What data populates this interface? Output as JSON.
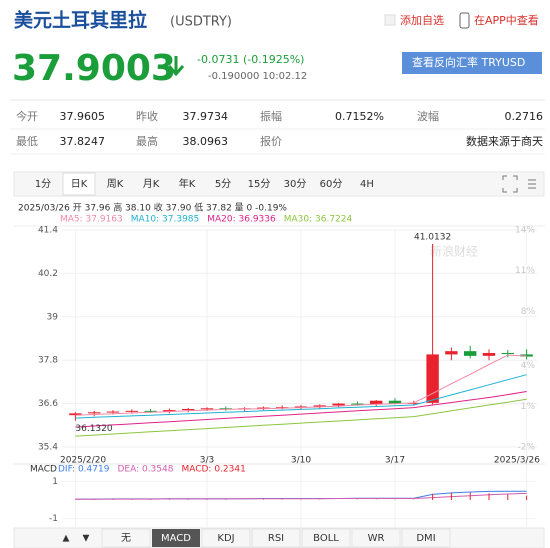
{
  "header": {
    "title": "美元土耳其里拉",
    "code": "(USDTRY)",
    "add_watch": "添加自选",
    "app_view": "在APP中查看"
  },
  "quote": {
    "price": "37.9003",
    "change": "-0.0731 (-0.1925%)",
    "sub": "-0.190000 10:02.12",
    "reverse_button": "查看反向汇率 TRYUSD"
  },
  "stats": {
    "rows": [
      [
        {
          "label": "今开",
          "value": "37.9605"
        },
        {
          "label": "昨收",
          "value": "37.9734"
        },
        {
          "label": "振幅",
          "value": "0.7152%"
        },
        {
          "label": "波幅",
          "value": "0.2716"
        }
      ],
      [
        {
          "label": "最低",
          "value": "37.8247"
        },
        {
          "label": "最高",
          "value": "38.0963"
        },
        {
          "label": "报价"
        },
        {
          "value": "数据来源于商天"
        }
      ]
    ]
  },
  "period_tabs": [
    "1分",
    "日K",
    "周K",
    "月K",
    "年K",
    "5分",
    "15分",
    "30分",
    "60分",
    "4H"
  ],
  "period_active": 1,
  "info_line": "2025/03/26 开 37.96 高 38.10 收 37.90 低 37.82 量 0 -0.19%",
  "watermark": "新浪财经",
  "indicator_tabs": [
    "无",
    "MACD",
    "KDJ",
    "RSI",
    "BOLL",
    "WR",
    "DMI"
  ],
  "indicator_active": 1,
  "chart_data": [
    {
      "type": "candlestick",
      "categories": [
        "2025/2/20",
        null,
        null,
        null,
        null,
        null,
        null,
        "3/3",
        null,
        null,
        null,
        null,
        "3/10",
        null,
        null,
        null,
        null,
        "3/17",
        null,
        null,
        null,
        null,
        null,
        null,
        "2025/3/26"
      ],
      "open": [
        36.28,
        36.33,
        36.36,
        36.38,
        36.4,
        36.38,
        36.42,
        36.45,
        36.47,
        36.44,
        36.47,
        36.49,
        36.5,
        36.52,
        36.55,
        36.6,
        36.58,
        36.68,
        36.6,
        36.62,
        37.96,
        38.05,
        37.92,
        38.0,
        37.96
      ],
      "high": [
        36.36,
        36.4,
        36.42,
        36.44,
        36.45,
        36.46,
        36.48,
        36.5,
        36.52,
        36.5,
        36.52,
        36.55,
        36.56,
        36.58,
        36.62,
        36.66,
        36.7,
        36.75,
        36.68,
        41.0132,
        38.15,
        38.2,
        38.1,
        38.08,
        38.1
      ],
      "low": [
        36.132,
        36.25,
        36.3,
        36.32,
        36.34,
        36.33,
        36.36,
        36.4,
        36.4,
        36.38,
        36.42,
        36.44,
        36.45,
        36.46,
        36.5,
        36.54,
        36.52,
        36.58,
        36.54,
        36.58,
        37.8,
        37.85,
        37.8,
        37.88,
        37.82
      ],
      "close": [
        36.33,
        36.36,
        36.38,
        36.4,
        36.38,
        36.42,
        36.45,
        36.47,
        36.44,
        36.47,
        36.49,
        36.5,
        36.52,
        36.55,
        36.6,
        36.58,
        36.68,
        36.6,
        36.62,
        37.96,
        38.05,
        37.92,
        38.0,
        37.97,
        37.9
      ],
      "up_color": "#e8232e",
      "down_color": "#1b9e3a",
      "ylim": [
        35.4,
        41.4
      ],
      "yticks": [
        41.4,
        40.2,
        39,
        37.8,
        36.6,
        35.4
      ],
      "y2lim": [
        -2,
        14
      ],
      "y2ticks": [
        {
          "value": 14,
          "label": "14%"
        },
        {
          "value": 11,
          "label": "11%"
        },
        {
          "value": 8,
          "label": "8%"
        },
        {
          "value": 4,
          "label": "4%"
        },
        {
          "value": 1,
          "label": "1%"
        },
        {
          "value": -2,
          "label": "-2%"
        }
      ],
      "grid": true,
      "max_label": "41.0132",
      "min_label": "36.1320",
      "series": [
        {
          "name": "MA5: 37.9163",
          "color": "#f08aa6",
          "values": [
            36.28,
            36.3,
            36.32,
            36.34,
            36.36,
            36.38,
            36.4,
            36.42,
            36.44,
            36.45,
            36.46,
            36.47,
            36.49,
            36.51,
            36.53,
            36.56,
            36.58,
            36.6,
            36.62,
            36.88,
            37.15,
            37.41,
            37.68,
            37.94,
            37.9163
          ]
        },
        {
          "name": "MA10: 37.3985",
          "color": "#1fb2d4",
          "values": [
            36.2,
            36.22,
            36.24,
            36.26,
            36.28,
            36.3,
            36.32,
            36.34,
            36.36,
            36.38,
            36.4,
            36.42,
            36.44,
            36.46,
            36.48,
            36.5,
            36.52,
            36.54,
            36.56,
            36.7,
            36.84,
            36.98,
            37.12,
            37.26,
            37.3985
          ]
        },
        {
          "name": "MA20: 36.9336",
          "color": "#e0228a",
          "values": [
            35.95,
            35.98,
            36.01,
            36.04,
            36.07,
            36.1,
            36.13,
            36.16,
            36.19,
            36.22,
            36.25,
            36.28,
            36.31,
            36.34,
            36.37,
            36.4,
            36.43,
            36.46,
            36.49,
            36.56,
            36.63,
            36.7,
            36.77,
            36.85,
            36.9336
          ]
        },
        {
          "name": "MA30: 36.7224",
          "color": "#8cc63f",
          "values": [
            35.7,
            35.73,
            35.76,
            35.79,
            35.82,
            35.85,
            35.88,
            35.91,
            35.94,
            35.97,
            36.0,
            36.03,
            36.06,
            36.09,
            36.12,
            36.15,
            36.18,
            36.21,
            36.24,
            36.32,
            36.4,
            36.48,
            36.56,
            36.64,
            36.7224
          ]
        }
      ]
    },
    {
      "type": "macd",
      "title": "MACD",
      "ylim": [
        -1.5,
        1.5
      ],
      "yticks": [
        1,
        -1
      ],
      "series": [
        {
          "name": "DIF: 0.4719",
          "color": "#3f7ee8",
          "values": [
            0.05,
            0.05,
            0.06,
            0.06,
            0.06,
            0.07,
            0.07,
            0.07,
            0.07,
            0.07,
            0.08,
            0.08,
            0.08,
            0.08,
            0.08,
            0.09,
            0.09,
            0.09,
            0.09,
            0.3,
            0.38,
            0.43,
            0.46,
            0.47,
            0.4719
          ]
        },
        {
          "name": "DEA: 0.3548",
          "color": "#d35db0",
          "values": [
            0.04,
            0.04,
            0.05,
            0.05,
            0.05,
            0.06,
            0.06,
            0.06,
            0.06,
            0.07,
            0.07,
            0.07,
            0.07,
            0.07,
            0.08,
            0.08,
            0.08,
            0.08,
            0.08,
            0.13,
            0.18,
            0.23,
            0.28,
            0.32,
            0.3548
          ]
        },
        {
          "name": "MACD: 0.2341",
          "color": "#e8232e",
          "bars": true,
          "values": [
            0.02,
            0.02,
            0.02,
            0.02,
            0.02,
            0.02,
            0.02,
            0.02,
            0.02,
            0,
            0.02,
            0.02,
            0.02,
            0.02,
            0,
            0.02,
            0.02,
            0.02,
            0.02,
            0.34,
            0.4,
            0.4,
            0.36,
            0.3,
            0.2341
          ]
        }
      ]
    }
  ]
}
